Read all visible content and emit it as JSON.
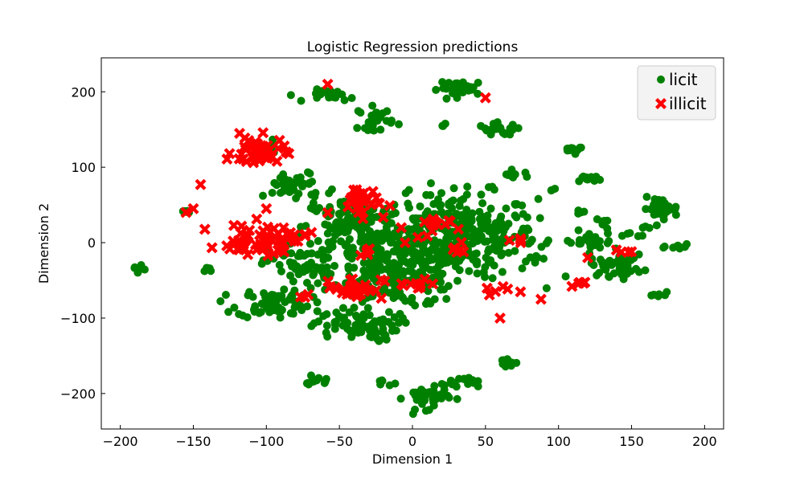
{
  "chart_data": {
    "type": "scatter",
    "title": "Logistic Regression predictions",
    "xlabel": "Dimension 1",
    "ylabel": "Dimension 2",
    "xlim": [
      -213,
      213
    ],
    "ylim": [
      -247,
      245
    ],
    "xticks": [
      -200,
      -150,
      -100,
      -50,
      0,
      50,
      100,
      150,
      200
    ],
    "yticks": [
      -200,
      -100,
      0,
      100,
      200
    ],
    "xtick_labels": [
      "−200",
      "−150",
      "−100",
      "−50",
      "0",
      "50",
      "100",
      "150",
      "200"
    ],
    "ytick_labels": [
      "−200",
      "−100",
      "0",
      "100",
      "200"
    ],
    "grid": false,
    "legend_position": "top-right",
    "series": [
      {
        "name": "licit",
        "marker": "circle",
        "color": "#008000",
        "clusters": [
          {
            "cx": 30,
            "cy": 10,
            "rx": 55,
            "ry": 55,
            "n": 330
          },
          {
            "cx": -10,
            "cy": -40,
            "rx": 45,
            "ry": 45,
            "n": 200
          },
          {
            "cx": -40,
            "cy": 20,
            "rx": 35,
            "ry": 45,
            "n": 150
          },
          {
            "cx": -95,
            "cy": -80,
            "rx": 25,
            "ry": 20,
            "n": 70
          },
          {
            "cx": -40,
            "cy": -110,
            "rx": 30,
            "ry": 20,
            "n": 70
          },
          {
            "cx": -75,
            "cy": -30,
            "rx": 25,
            "ry": 30,
            "n": 60
          },
          {
            "cx": -80,
            "cy": 75,
            "rx": 20,
            "ry": 20,
            "n": 40
          },
          {
            "cx": 140,
            "cy": -30,
            "rx": 18,
            "ry": 14,
            "n": 45
          },
          {
            "cx": 120,
            "cy": 0,
            "rx": 18,
            "ry": 15,
            "n": 30
          },
          {
            "cx": 170,
            "cy": 45,
            "rx": 12,
            "ry": 14,
            "n": 30
          },
          {
            "cx": 35,
            "cy": 205,
            "rx": 17,
            "ry": 10,
            "n": 30
          },
          {
            "cx": -55,
            "cy": 195,
            "rx": 15,
            "ry": 8,
            "n": 25
          },
          {
            "cx": -25,
            "cy": 165,
            "rx": 12,
            "ry": 15,
            "n": 25
          },
          {
            "cx": 60,
            "cy": 150,
            "rx": 15,
            "ry": 8,
            "n": 25
          },
          {
            "cx": 10,
            "cy": -205,
            "rx": 15,
            "ry": 15,
            "n": 40
          },
          {
            "cx": 30,
            "cy": -185,
            "rx": 15,
            "ry": 8,
            "n": 20
          },
          {
            "cx": -65,
            "cy": -185,
            "rx": 8,
            "ry": 8,
            "n": 12
          },
          {
            "cx": -20,
            "cy": -185,
            "rx": 6,
            "ry": 5,
            "n": 6
          },
          {
            "cx": 65,
            "cy": -160,
            "rx": 7,
            "ry": 8,
            "n": 12
          },
          {
            "cx": -188,
            "cy": -35,
            "rx": 4,
            "ry": 4,
            "n": 10
          },
          {
            "cx": 120,
            "cy": 85,
            "rx": 10,
            "ry": 5,
            "n": 10
          },
          {
            "cx": 110,
            "cy": 125,
            "rx": 8,
            "ry": 6,
            "n": 10
          },
          {
            "cx": 70,
            "cy": 90,
            "rx": 10,
            "ry": 5,
            "n": 10
          },
          {
            "cx": 130,
            "cy": 25,
            "rx": 6,
            "ry": 5,
            "n": 8
          },
          {
            "cx": 185,
            "cy": -5,
            "rx": 10,
            "ry": 5,
            "n": 10
          },
          {
            "cx": 170,
            "cy": -70,
            "rx": 5,
            "ry": 4,
            "n": 6
          },
          {
            "cx": -100,
            "cy": 125,
            "rx": 10,
            "ry": 8,
            "n": 10
          },
          {
            "cx": -140,
            "cy": -35,
            "rx": 4,
            "ry": 4,
            "n": 5
          },
          {
            "cx": -155,
            "cy": 40,
            "rx": 5,
            "ry": 4,
            "n": 6
          },
          {
            "cx": 20,
            "cy": 155,
            "rx": 3,
            "ry": 3,
            "n": 3
          },
          {
            "cx": 95,
            "cy": 70,
            "rx": 3,
            "ry": 3,
            "n": 3
          },
          {
            "cx": 115,
            "cy": 40,
            "rx": 5,
            "ry": 4,
            "n": 5
          },
          {
            "cx": 85,
            "cy": -20,
            "rx": 6,
            "ry": 6,
            "n": 6
          },
          {
            "cx": 150,
            "cy": 10,
            "rx": 5,
            "ry": 4,
            "n": 4
          },
          {
            "cx": 160,
            "cy": 20,
            "rx": 4,
            "ry": 3,
            "n": 3
          }
        ]
      },
      {
        "name": "illicit",
        "marker": "x",
        "color": "#ff0000",
        "clusters": [
          {
            "cx": -105,
            "cy": 120,
            "rx": 18,
            "ry": 20,
            "n": 45
          },
          {
            "cx": -100,
            "cy": 5,
            "rx": 28,
            "ry": 20,
            "n": 55
          },
          {
            "cx": -40,
            "cy": -60,
            "rx": 20,
            "ry": 15,
            "n": 30
          },
          {
            "cx": -35,
            "cy": 55,
            "rx": 18,
            "ry": 20,
            "n": 30
          },
          {
            "cx": 10,
            "cy": 20,
            "rx": 15,
            "ry": 15,
            "n": 15
          },
          {
            "cx": 0,
            "cy": -55,
            "rx": 15,
            "ry": 10,
            "n": 10
          },
          {
            "cx": 30,
            "cy": -10,
            "rx": 10,
            "ry": 10,
            "n": 6
          },
          {
            "cx": 60,
            "cy": -60,
            "rx": 10,
            "ry": 10,
            "n": 6
          },
          {
            "cx": 70,
            "cy": 0,
            "rx": 6,
            "ry": 5,
            "n": 4
          },
          {
            "cx": -125,
            "cy": -5,
            "rx": 8,
            "ry": 8,
            "n": 6
          },
          {
            "cx": -30,
            "cy": -15,
            "rx": 8,
            "ry": 8,
            "n": 5
          },
          {
            "cx": 115,
            "cy": -55,
            "rx": 6,
            "ry": 6,
            "n": 5
          },
          {
            "cx": 140,
            "cy": -12,
            "rx": 6,
            "ry": 3,
            "n": 3
          },
          {
            "cx": -75,
            "cy": -70,
            "rx": 5,
            "ry": 5,
            "n": 3
          }
        ],
        "points": [
          [
            -58,
            210
          ],
          [
            50,
            192
          ],
          [
            -145,
            77
          ],
          [
            -150,
            45
          ],
          [
            -155,
            40
          ],
          [
            60,
            -100
          ],
          [
            88,
            -75
          ],
          [
            120,
            -20
          ],
          [
            150,
            -12
          ],
          [
            -100,
            45
          ],
          [
            -5,
            0
          ]
        ]
      }
    ]
  }
}
